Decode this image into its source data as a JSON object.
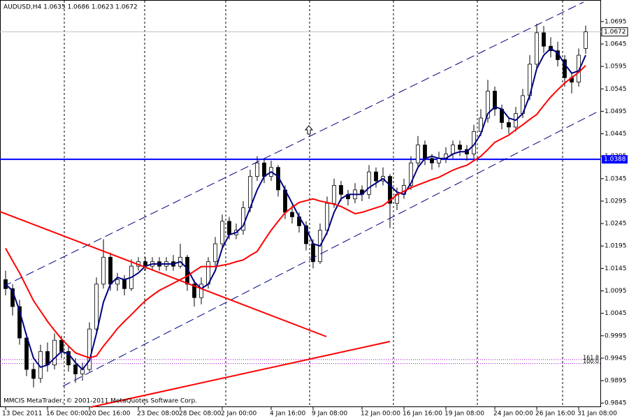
{
  "chart_data": {
    "type": "candlestick",
    "title": "AUDUSD,H4  1.0635 1.0686 1.0623 1.0672",
    "footer": "MMCIS MetaTrader, © 2001-2011 MetaQuotes Software Corp.",
    "categories": [
      "13 Dec 2011",
      null,
      null,
      null,
      null,
      null,
      "16 Dec 00:00",
      null,
      null,
      null,
      null,
      null,
      "20 Dec 16:00",
      null,
      null,
      null,
      null,
      null,
      null,
      "23 Dec 08:00",
      null,
      null,
      null,
      null,
      null,
      "28 Dec 08:00",
      null,
      null,
      null,
      null,
      null,
      "2 Jan 00:00",
      null,
      null,
      null,
      null,
      null,
      null,
      "4 Jan 16:00",
      null,
      null,
      null,
      null,
      null,
      "9 Jan 08:00",
      null,
      null,
      null,
      null,
      null,
      null,
      "12 Jan 00:00",
      null,
      null,
      null,
      null,
      null,
      "16 Jan 16:00",
      null,
      null,
      null,
      null,
      null,
      "19 Jan 08:00",
      null,
      null,
      null,
      null,
      null,
      null,
      "24 Jan 00:00",
      null,
      null,
      null,
      null,
      null,
      "26 Jan 16:00",
      null,
      null,
      null,
      null,
      null,
      "31 Jan 08:00",
      null
    ],
    "open": [
      1.012,
      1.01,
      1.006,
      0.999,
      0.992,
      0.99,
      0.996,
      0.993,
      0.9985,
      0.996,
      0.993,
      0.991,
      0.992,
      1.001,
      1.011,
      1.017,
      1.011,
      1.012,
      1.01,
      1.015,
      1.016,
      1.015,
      1.016,
      1.015,
      1.016,
      1.015,
      1.017,
      1.011,
      1.008,
      1.011,
      1.016,
      1.02,
      1.025,
      1.022,
      1.023,
      1.028,
      1.035,
      1.038,
      1.035,
      1.037,
      1.032,
      1.027,
      1.026,
      1.024,
      1.02,
      1.016,
      1.023,
      1.029,
      1.033,
      1.031,
      1.03,
      1.032,
      1.031,
      1.036,
      1.034,
      1.035,
      1.029,
      1.031,
      1.033,
      1.038,
      1.042,
      1.039,
      1.038,
      1.039,
      1.04,
      1.042,
      1.041,
      1.04,
      1.045,
      1.048,
      1.054,
      1.05,
      1.047,
      1.046,
      1.049,
      1.053,
      1.06,
      1.067,
      1.064,
      1.063,
      1.061,
      1.057,
      1.056,
      1.0635
    ],
    "high": [
      1.014,
      1.011,
      1.0075,
      1.0,
      0.9935,
      0.9975,
      0.998,
      1.0,
      0.9995,
      0.997,
      0.9945,
      0.9935,
      1.0025,
      1.0125,
      1.021,
      1.018,
      1.0135,
      1.013,
      1.0165,
      1.017,
      1.017,
      1.017,
      1.017,
      1.017,
      1.0175,
      1.02,
      1.0175,
      1.012,
      1.0125,
      1.017,
      1.0215,
      1.0265,
      1.026,
      1.0245,
      1.0295,
      1.0365,
      1.0395,
      1.039,
      1.0385,
      1.0375,
      1.033,
      1.0285,
      1.027,
      1.025,
      1.021,
      1.0245,
      1.0305,
      1.0345,
      1.034,
      1.032,
      1.0335,
      1.033,
      1.0375,
      1.037,
      1.037,
      1.0355,
      1.0325,
      1.0345,
      1.0395,
      1.044,
      1.043,
      1.04,
      1.0405,
      1.0415,
      1.043,
      1.043,
      1.042,
      1.0465,
      1.05,
      1.0565,
      1.055,
      1.051,
      1.048,
      1.0505,
      1.0545,
      1.062,
      1.069,
      1.0685,
      1.066,
      1.065,
      1.062,
      1.058,
      1.0635,
      1.0686
    ],
    "low": [
      1.0085,
      1.004,
      0.9975,
      0.9905,
      0.988,
      0.989,
      0.9915,
      0.992,
      0.9945,
      0.9915,
      0.989,
      0.9895,
      0.9915,
      1.0,
      1.01,
      1.0095,
      1.0095,
      1.0085,
      1.0095,
      1.014,
      1.014,
      1.014,
      1.014,
      1.014,
      1.014,
      1.0145,
      1.0095,
      1.006,
      1.0065,
      1.01,
      1.015,
      1.019,
      1.021,
      1.021,
      1.022,
      1.027,
      1.034,
      1.0335,
      1.034,
      1.0305,
      1.0255,
      1.0245,
      1.0225,
      1.0185,
      1.0145,
      1.0155,
      1.022,
      1.028,
      1.0295,
      1.0285,
      1.029,
      1.0295,
      1.03,
      1.0325,
      1.033,
      1.0235,
      1.0275,
      1.03,
      1.032,
      1.037,
      1.0375,
      1.0365,
      1.037,
      1.038,
      1.039,
      1.0395,
      1.0385,
      1.039,
      1.044,
      1.047,
      1.0485,
      1.0455,
      1.0445,
      1.045,
      1.048,
      1.052,
      1.059,
      1.0625,
      1.0615,
      1.0595,
      1.055,
      1.0535,
      1.055,
      1.0623
    ],
    "close": [
      1.01,
      1.006,
      0.999,
      0.992,
      0.99,
      0.996,
      0.993,
      0.9985,
      0.996,
      0.993,
      0.991,
      0.992,
      1.001,
      1.011,
      1.017,
      1.011,
      1.012,
      1.01,
      1.015,
      1.016,
      1.015,
      1.016,
      1.015,
      1.016,
      1.015,
      1.017,
      1.011,
      1.008,
      1.011,
      1.016,
      1.02,
      1.025,
      1.022,
      1.023,
      1.028,
      1.035,
      1.038,
      1.035,
      1.037,
      1.032,
      1.027,
      1.026,
      1.024,
      1.02,
      1.016,
      1.023,
      1.029,
      1.033,
      1.031,
      1.03,
      1.032,
      1.031,
      1.036,
      1.034,
      1.035,
      1.029,
      1.031,
      1.033,
      1.038,
      1.042,
      1.039,
      1.038,
      1.039,
      1.04,
      1.042,
      1.041,
      1.04,
      1.045,
      1.048,
      1.054,
      1.05,
      1.047,
      1.046,
      1.049,
      1.053,
      1.06,
      1.067,
      1.064,
      1.063,
      1.061,
      1.057,
      1.056,
      1.062,
      1.0672
    ],
    "up_color": "#ffffff",
    "down_color": "#000000",
    "series": [
      {
        "color": "#000080",
        "values": [
          1.011,
          1.0095,
          1.005,
          0.9995,
          0.9945,
          0.9925,
          0.993,
          0.9945,
          0.996,
          0.9955,
          0.9935,
          0.992,
          0.994,
          1.0,
          1.007,
          1.011,
          1.0125,
          1.012,
          1.0125,
          1.0135,
          1.015,
          1.0155,
          1.0155,
          1.0155,
          1.0155,
          1.016,
          1.0145,
          1.0115,
          1.01,
          1.011,
          1.014,
          1.019,
          1.022,
          1.0225,
          1.024,
          1.028,
          1.032,
          1.035,
          1.036,
          1.035,
          1.032,
          1.029,
          1.026,
          1.0235,
          1.02,
          1.0195,
          1.0225,
          1.027,
          1.03,
          1.031,
          1.031,
          1.031,
          1.0325,
          1.0335,
          1.0345,
          1.033,
          1.0315,
          1.031,
          1.0335,
          1.037,
          1.039,
          1.0395,
          1.039,
          1.039,
          1.04,
          1.0405,
          1.0405,
          1.042,
          1.0445,
          1.049,
          1.0505,
          1.05,
          1.048,
          1.0475,
          1.049,
          1.053,
          1.059,
          1.062,
          1.0635,
          1.0625,
          1.06,
          1.058,
          1.0585,
          1.062
        ]
      },
      {
        "color": "#ff0000",
        "values": [
          1.019,
          1.0162,
          1.0135,
          1.0104,
          1.0073,
          1.005,
          1.0027,
          1.0007,
          0.9988,
          0.9972,
          0.9957,
          0.9951,
          0.9946,
          0.995,
          0.9972,
          0.9991,
          1.0011,
          1.0027,
          1.0042,
          1.0058,
          1.0073,
          1.0085,
          1.0096,
          1.0104,
          1.0112,
          1.012,
          1.0128,
          1.0139,
          1.0149,
          1.0149,
          1.0149,
          1.0152,
          1.0155,
          1.016,
          1.0164,
          1.0174,
          1.0183,
          1.0207,
          1.023,
          1.025,
          1.0269,
          1.0281,
          1.0292,
          1.0296,
          1.03,
          1.0295,
          1.0292,
          1.0288,
          1.0283,
          1.0275,
          1.0267,
          1.027,
          1.0275,
          1.028,
          1.0285,
          1.0297,
          1.0309,
          1.0317,
          1.0325,
          1.0331,
          1.0337,
          1.0343,
          1.0348,
          1.0356,
          1.0364,
          1.037,
          1.0375,
          1.0385,
          1.0395,
          1.041,
          1.0426,
          1.0434,
          1.0442,
          1.0454,
          1.0465,
          1.0477,
          1.0488,
          1.0508,
          1.0527,
          1.0543,
          1.0558,
          1.057,
          1.0582,
          1.0597
        ]
      }
    ],
    "ylim": [
      0.9836,
      1.0743
    ],
    "yticks": [
      1.0695,
      1.0645,
      1.0595,
      1.0545,
      1.0495,
      1.0445,
      1.0395,
      1.0345,
      1.0295,
      1.0245,
      1.0195,
      1.0145,
      1.0095,
      1.0045,
      0.9995,
      0.9945,
      0.9895,
      0.9845
    ],
    "hlines": [
      {
        "value": 1.0388,
        "color": "#0000ff"
      }
    ],
    "fibo_levels": [
      {
        "value": 0.9942,
        "label": "161.8"
      },
      {
        "value": 0.9933,
        "label": "100.0"
      }
    ],
    "fibo_color": "#9900cc",
    "price_line_color": "#c0c0c0"
  }
}
